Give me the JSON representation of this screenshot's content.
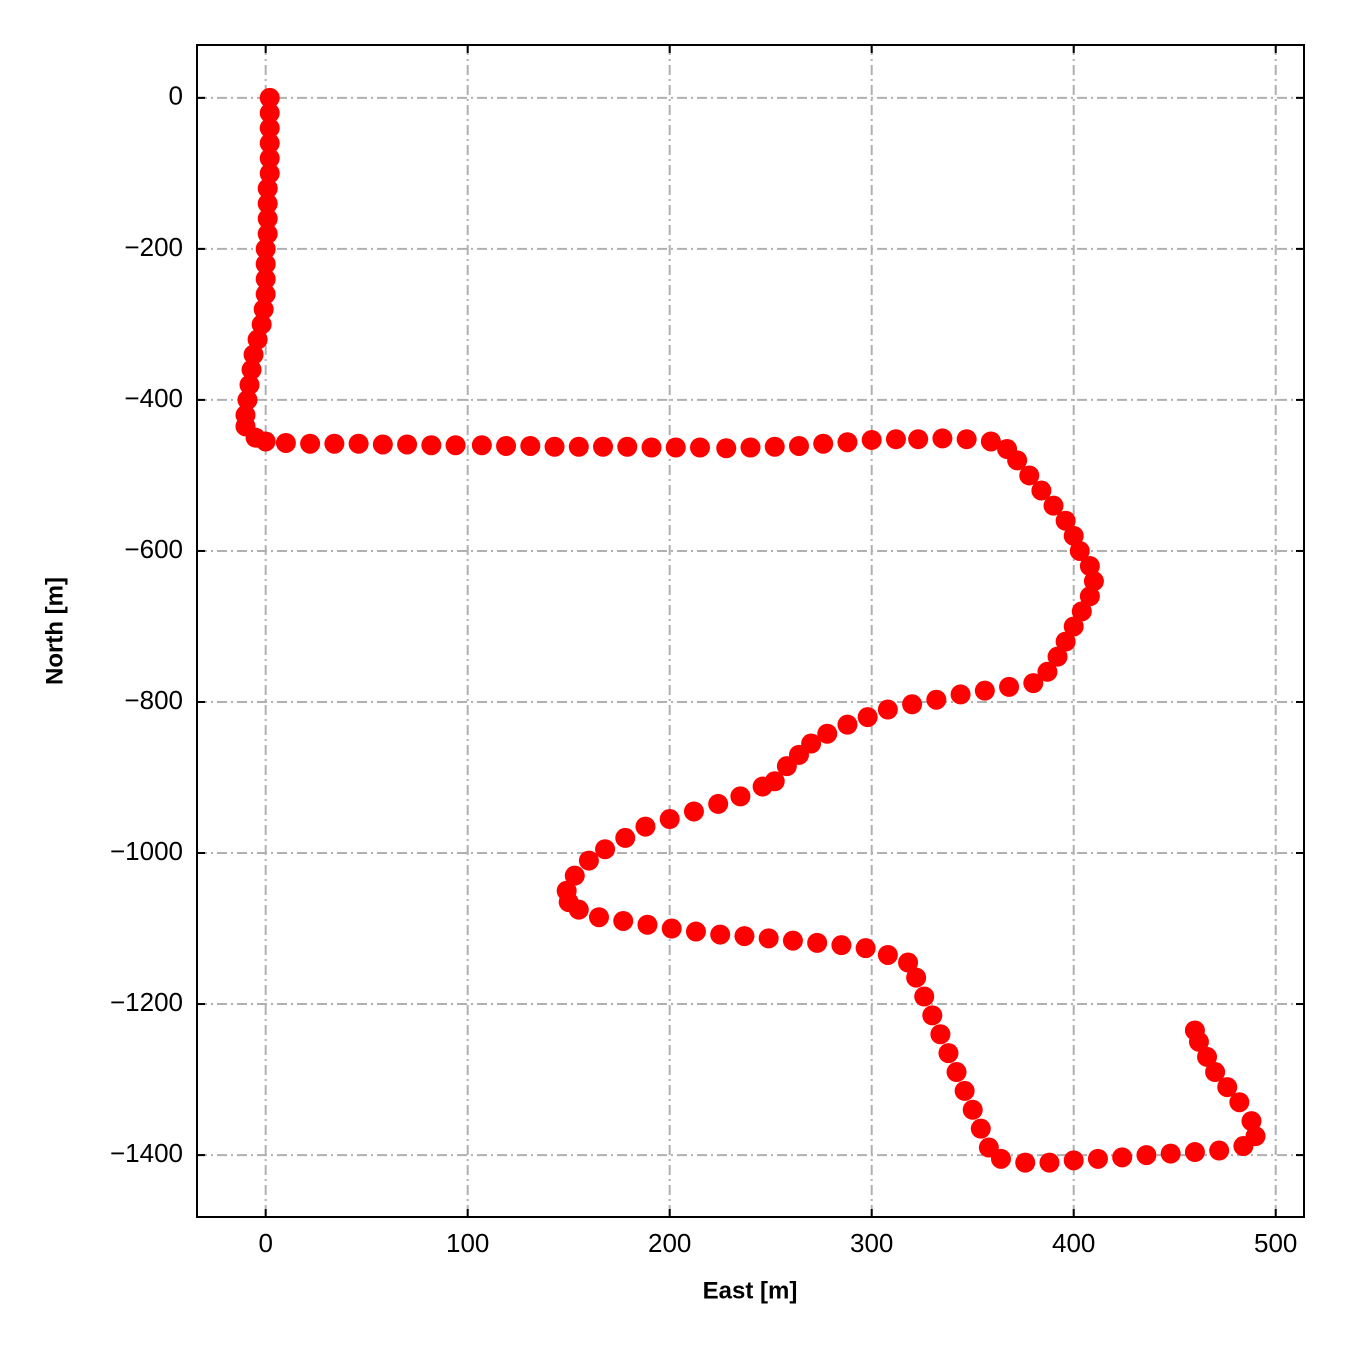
{
  "chart_data": {
    "type": "scatter",
    "xlabel": "East [m]",
    "ylabel": "North [m]",
    "color": "#ff0000",
    "grid": true,
    "xlim": [
      -34,
      514
    ],
    "ylim": [
      -1482,
      70
    ],
    "xticks": [
      0,
      100,
      200,
      300,
      400,
      500
    ],
    "yticks": [
      {
        "value": -1400,
        "label": "−1400"
      },
      {
        "value": -1200,
        "label": "−1200"
      },
      {
        "value": -1000,
        "label": "−1000"
      },
      {
        "value": -800,
        "label": "−800"
      },
      {
        "value": -600,
        "label": "−600"
      },
      {
        "value": -400,
        "label": "−400"
      },
      {
        "value": -200,
        "label": "−200"
      },
      0
    ],
    "x": [
      2,
      2,
      2,
      2,
      2,
      2,
      1,
      1,
      1,
      1,
      0,
      0,
      0,
      0,
      -1,
      -2,
      -4,
      -6,
      -7,
      -8,
      -9,
      -10,
      -10,
      -5,
      0,
      10,
      22,
      34,
      46,
      58,
      70,
      82,
      94,
      107,
      119,
      131,
      143,
      155,
      167,
      179,
      191,
      203,
      215,
      228,
      240,
      252,
      264,
      276,
      288,
      300,
      312,
      323,
      335,
      347,
      359,
      367,
      372,
      378,
      384,
      390,
      396,
      400,
      403,
      408,
      410,
      408,
      404,
      400,
      396,
      392,
      387,
      380,
      368,
      356,
      344,
      332,
      320,
      308,
      298,
      288,
      278,
      270,
      264,
      258,
      252,
      246,
      235,
      224,
      212,
      200,
      188,
      178,
      168,
      160,
      153,
      149,
      150,
      155,
      165,
      177,
      189,
      201,
      213,
      225,
      237,
      249,
      261,
      273,
      285,
      297,
      308,
      318,
      322,
      326,
      330,
      334,
      338,
      342,
      346,
      350,
      354,
      358,
      364,
      376,
      388,
      400,
      412,
      424,
      436,
      448,
      460,
      472,
      484,
      490,
      488,
      482,
      476,
      470,
      466,
      462,
      460
    ],
    "y": [
      0,
      -20,
      -40,
      -60,
      -80,
      -100,
      -120,
      -140,
      -160,
      -180,
      -200,
      -220,
      -240,
      -260,
      -280,
      -300,
      -320,
      -340,
      -360,
      -380,
      -400,
      -420,
      -435,
      -450,
      -455,
      -457,
      -458,
      -458,
      -458,
      -459,
      -459,
      -460,
      -460,
      -460,
      -461,
      -461,
      -462,
      -462,
      -462,
      -462,
      -463,
      -463,
      -463,
      -464,
      -463,
      -462,
      -461,
      -458,
      -456,
      -453,
      -452,
      -452,
      -451,
      -452,
      -455,
      -465,
      -480,
      -500,
      -520,
      -540,
      -560,
      -580,
      -600,
      -620,
      -640,
      -660,
      -680,
      -700,
      -720,
      -740,
      -760,
      -775,
      -780,
      -785,
      -790,
      -797,
      -803,
      -810,
      -820,
      -830,
      -842,
      -855,
      -870,
      -885,
      -905,
      -912,
      -925,
      -935,
      -945,
      -955,
      -965,
      -980,
      -995,
      -1010,
      -1030,
      -1050,
      -1065,
      -1075,
      -1085,
      -1090,
      -1095,
      -1100,
      -1104,
      -1108,
      -1110,
      -1113,
      -1116,
      -1119,
      -1122,
      -1126,
      -1135,
      -1145,
      -1165,
      -1190,
      -1215,
      -1240,
      -1265,
      -1290,
      -1315,
      -1340,
      -1365,
      -1390,
      -1405,
      -1410,
      -1410,
      -1407,
      -1405,
      -1403,
      -1400,
      -1398,
      -1396,
      -1394,
      -1388,
      -1375,
      -1355,
      -1330,
      -1310,
      -1290,
      -1270,
      -1250,
      -1235
    ]
  }
}
